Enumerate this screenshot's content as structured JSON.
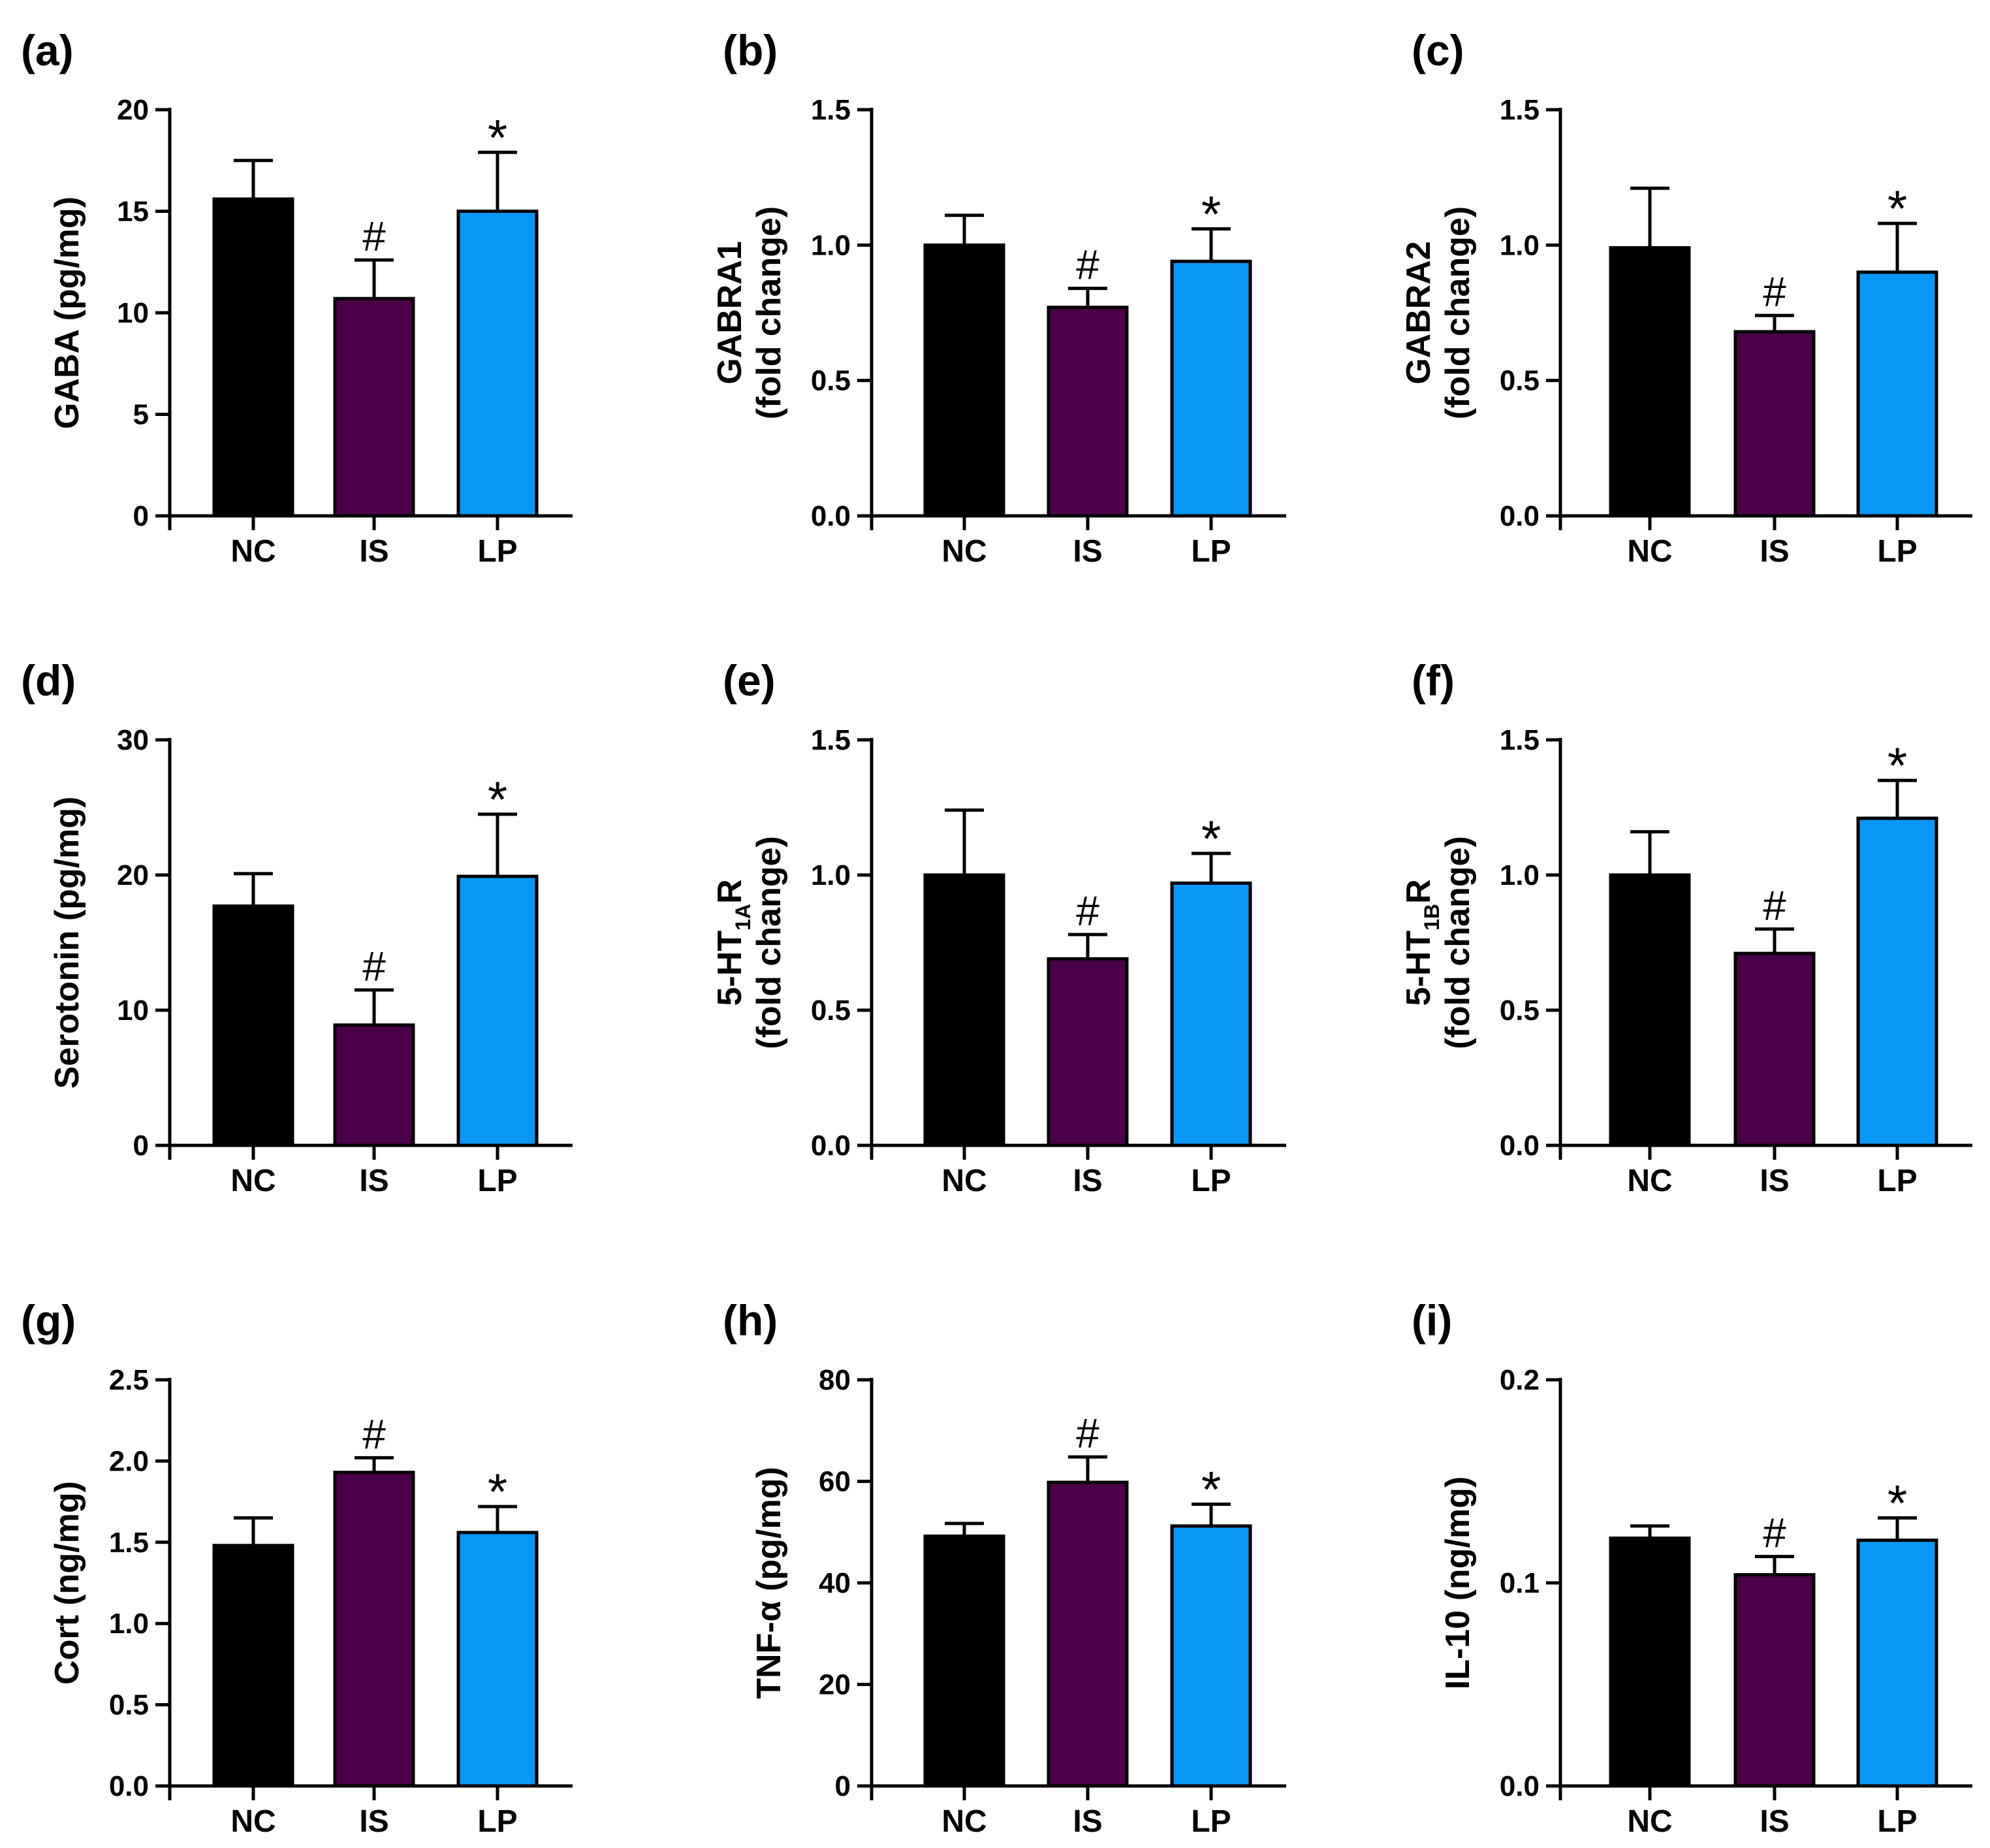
{
  "colors": {
    "NC": "#000000",
    "IS": "#4a0048",
    "LP": "#0a97f7",
    "axis": "#000000"
  },
  "chart_data": [
    {
      "type": "bar",
      "panel": "(a)",
      "title": "",
      "categories": [
        "NC",
        "IS",
        "LP"
      ],
      "values": [
        15.6,
        10.7,
        15.0
      ],
      "errors": [
        1.9,
        1.9,
        2.9
      ],
      "significance": [
        "",
        "#",
        "*"
      ],
      "ylabel_lines": [
        {
          "text": "GABA (pg/mg)"
        }
      ],
      "ylim": [
        0,
        20
      ],
      "yticks": [
        0,
        5,
        10,
        15,
        20
      ],
      "ytick_labels": [
        "0",
        "5",
        "10",
        "15",
        "20"
      ]
    },
    {
      "type": "bar",
      "panel": "(b)",
      "title": "",
      "categories": [
        "NC",
        "IS",
        "LP"
      ],
      "values": [
        1.0,
        0.77,
        0.94
      ],
      "errors": [
        0.11,
        0.07,
        0.12
      ],
      "significance": [
        "",
        "#",
        "*"
      ],
      "ylabel_lines": [
        {
          "text": "GABRA1"
        },
        {
          "text": "(fold change)"
        }
      ],
      "ylim": [
        0,
        1.5
      ],
      "yticks": [
        0,
        0.5,
        1.0,
        1.5
      ],
      "ytick_labels": [
        "0.0",
        "0.5",
        "1.0",
        "1.5"
      ]
    },
    {
      "type": "bar",
      "panel": "(c)",
      "title": "",
      "categories": [
        "NC",
        "IS",
        "LP"
      ],
      "values": [
        0.99,
        0.68,
        0.9
      ],
      "errors": [
        0.22,
        0.06,
        0.18
      ],
      "significance": [
        "",
        "#",
        "*"
      ],
      "ylabel_lines": [
        {
          "text": "GABRA2"
        },
        {
          "text": "(fold change)"
        }
      ],
      "ylim": [
        0,
        1.5
      ],
      "yticks": [
        0,
        0.5,
        1.0,
        1.5
      ],
      "ytick_labels": [
        "0.0",
        "0.5",
        "1.0",
        "1.5"
      ]
    },
    {
      "type": "bar",
      "panel": "(d)",
      "title": "",
      "categories": [
        "NC",
        "IS",
        "LP"
      ],
      "values": [
        17.7,
        8.9,
        19.9
      ],
      "errors": [
        2.4,
        2.6,
        4.6
      ],
      "significance": [
        "",
        "#",
        "*"
      ],
      "ylabel_lines": [
        {
          "text": "Serotonin (pg/mg)"
        }
      ],
      "ylim": [
        0,
        30
      ],
      "yticks": [
        0,
        10,
        20,
        30
      ],
      "ytick_labels": [
        "0",
        "10",
        "20",
        "30"
      ]
    },
    {
      "type": "bar",
      "panel": "(e)",
      "title": "",
      "categories": [
        "NC",
        "IS",
        "LP"
      ],
      "values": [
        1.0,
        0.69,
        0.97
      ],
      "errors": [
        0.24,
        0.09,
        0.11
      ],
      "significance": [
        "",
        "#",
        "*"
      ],
      "ylabel_lines": [
        {
          "text": "5-HT",
          "sub": "1A",
          "post": "R"
        },
        {
          "text": "(fold change)"
        }
      ],
      "ylim": [
        0,
        1.5
      ],
      "yticks": [
        0,
        0.5,
        1.0,
        1.5
      ],
      "ytick_labels": [
        "0.0",
        "0.5",
        "1.0",
        "1.5"
      ]
    },
    {
      "type": "bar",
      "panel": "(f)",
      "title": "",
      "categories": [
        "NC",
        "IS",
        "LP"
      ],
      "values": [
        1.0,
        0.71,
        1.21
      ],
      "errors": [
        0.16,
        0.09,
        0.14
      ],
      "significance": [
        "",
        "#",
        "*"
      ],
      "ylabel_lines": [
        {
          "text": "5-HT",
          "sub": "1B",
          "post": "R"
        },
        {
          "text": "(fold change)"
        }
      ],
      "ylim": [
        0,
        1.5
      ],
      "yticks": [
        0,
        0.5,
        1.0,
        1.5
      ],
      "ytick_labels": [
        "0.0",
        "0.5",
        "1.0",
        "1.5"
      ]
    },
    {
      "type": "bar",
      "panel": "(g)",
      "title": "",
      "categories": [
        "NC",
        "IS",
        "LP"
      ],
      "values": [
        1.48,
        1.93,
        1.56
      ],
      "errors": [
        0.17,
        0.09,
        0.16
      ],
      "significance": [
        "",
        "#",
        "*"
      ],
      "ylabel_lines": [
        {
          "text": "Cort (ng/mg)"
        }
      ],
      "ylim": [
        0,
        2.5
      ],
      "yticks": [
        0,
        0.5,
        1.0,
        1.5,
        2.0,
        2.5
      ],
      "ytick_labels": [
        "0.0",
        "0.5",
        "1.0",
        "1.5",
        "2.0",
        "2.5"
      ]
    },
    {
      "type": "bar",
      "panel": "(h)",
      "title": "",
      "categories": [
        "NC",
        "IS",
        "LP"
      ],
      "values": [
        49.2,
        59.8,
        51.2
      ],
      "errors": [
        2.5,
        5.0,
        4.3
      ],
      "significance": [
        "",
        "#",
        "*"
      ],
      "ylabel_lines": [
        {
          "text": "TNF-α (pg/mg)"
        }
      ],
      "ylim": [
        0,
        80
      ],
      "yticks": [
        0,
        20,
        40,
        60,
        80
      ],
      "ytick_labels": [
        "0",
        "20",
        "40",
        "60",
        "80"
      ]
    },
    {
      "type": "bar",
      "panel": "(i)",
      "title": "",
      "categories": [
        "NC",
        "IS",
        "LP"
      ],
      "values": [
        0.122,
        0.104,
        0.121
      ],
      "errors": [
        0.006,
        0.009,
        0.011
      ],
      "significance": [
        "",
        "#",
        "*"
      ],
      "ylabel_lines": [
        {
          "text": "IL-10 (ng/mg)"
        }
      ],
      "ylim": [
        0,
        0.2
      ],
      "yticks": [
        0,
        0.1,
        0.2
      ],
      "ytick_labels": [
        "0.0",
        "0.1",
        "0.2"
      ]
    }
  ]
}
